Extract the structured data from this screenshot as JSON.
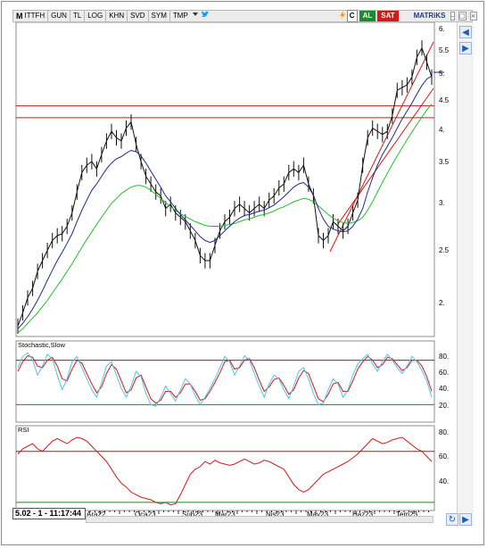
{
  "toolbar": {
    "brand": "M",
    "symbol": "ITTFH",
    "items": [
      "GUN",
      "TL",
      "LOG",
      "KHN",
      "SVD",
      "SYM",
      "TMP"
    ],
    "c_label": "C",
    "buy_label": "AL",
    "sell_label": "SAT",
    "matriks_label": "MATRiKS",
    "colors": {
      "buy": "#1f8b2c",
      "sell": "#d21a1a"
    }
  },
  "panels": {
    "stochastic_title": "Stochastic,Slow",
    "rsi_title": "RSI"
  },
  "price_axis": {
    "ticks": [
      "6.",
      "5.5",
      "5.",
      "4.5",
      "4.",
      "3.5",
      "3.",
      "2.5",
      "2."
    ]
  },
  "stoch_axis": {
    "ticks": [
      "80.",
      "60.",
      "40.",
      "20."
    ]
  },
  "rsi_axis": {
    "ticks": [
      "80.",
      "60.",
      "40."
    ]
  },
  "time_axis": {
    "labels": [
      "Ara22",
      "Oca23",
      "Şub23",
      "Mar23",
      "Nis23",
      "May23",
      "Haz23",
      "Tem23"
    ]
  },
  "status": {
    "readout": "5.02 - 1 - 11:17:44"
  },
  "chart_data": {
    "type": "line",
    "price_levels": [
      4.47,
      4.27
    ],
    "ylim_price": [
      1.85,
      6.1
    ],
    "price": [
      1.9,
      2.0,
      2.12,
      2.2,
      2.35,
      2.45,
      2.55,
      2.65,
      2.7,
      2.72,
      2.8,
      2.95,
      3.2,
      3.45,
      3.55,
      3.6,
      3.5,
      3.7,
      3.9,
      4.05,
      3.95,
      3.9,
      4.1,
      4.2,
      3.85,
      3.6,
      3.4,
      3.3,
      3.2,
      3.15,
      3.0,
      3.05,
      2.95,
      2.9,
      2.85,
      2.75,
      2.65,
      2.5,
      2.45,
      2.45,
      2.6,
      2.75,
      2.85,
      2.9,
      3.0,
      3.05,
      3.0,
      2.95,
      3.0,
      3.05,
      3.0,
      3.1,
      3.15,
      3.25,
      3.3,
      3.45,
      3.5,
      3.45,
      3.55,
      3.3,
      3.15,
      2.7,
      2.65,
      2.7,
      2.85,
      2.8,
      2.75,
      2.8,
      2.95,
      3.1,
      3.55,
      3.95,
      4.1,
      4.05,
      4.0,
      4.05,
      4.3,
      4.75,
      4.8,
      4.85,
      5.0,
      5.4,
      5.6,
      5.3,
      5.0
    ],
    "ma_short": [
      1.88,
      1.92,
      1.97,
      2.03,
      2.1,
      2.18,
      2.27,
      2.36,
      2.45,
      2.53,
      2.62,
      2.72,
      2.85,
      2.98,
      3.1,
      3.22,
      3.3,
      3.4,
      3.5,
      3.58,
      3.64,
      3.67,
      3.72,
      3.76,
      3.74,
      3.68,
      3.58,
      3.47,
      3.36,
      3.26,
      3.15,
      3.08,
      3.0,
      2.93,
      2.87,
      2.81,
      2.75,
      2.69,
      2.65,
      2.63,
      2.65,
      2.7,
      2.75,
      2.8,
      2.85,
      2.89,
      2.92,
      2.93,
      2.95,
      2.97,
      2.98,
      3.01,
      3.04,
      3.09,
      3.14,
      3.2,
      3.26,
      3.3,
      3.32,
      3.26,
      3.16,
      3.0,
      2.88,
      2.8,
      2.77,
      2.75,
      2.74,
      2.75,
      2.8,
      2.88,
      3.0,
      3.2,
      3.38,
      3.55,
      3.7,
      3.82,
      3.95,
      4.1,
      4.25,
      4.38,
      4.52,
      4.68,
      4.84,
      4.96,
      5.02
    ],
    "ma_long": [
      1.85,
      1.88,
      1.92,
      1.96,
      2.0,
      2.05,
      2.1,
      2.16,
      2.22,
      2.28,
      2.35,
      2.42,
      2.5,
      2.58,
      2.66,
      2.74,
      2.82,
      2.9,
      2.98,
      3.06,
      3.12,
      3.18,
      3.22,
      3.26,
      3.28,
      3.28,
      3.26,
      3.22,
      3.17,
      3.12,
      3.07,
      3.02,
      2.98,
      2.94,
      2.91,
      2.88,
      2.85,
      2.83,
      2.81,
      2.8,
      2.8,
      2.8,
      2.81,
      2.82,
      2.83,
      2.85,
      2.87,
      2.88,
      2.9,
      2.92,
      2.93,
      2.95,
      2.97,
      3.0,
      3.02,
      3.05,
      3.08,
      3.1,
      3.12,
      3.11,
      3.08,
      3.03,
      2.98,
      2.93,
      2.89,
      2.86,
      2.84,
      2.83,
      2.84,
      2.86,
      2.9,
      2.98,
      3.08,
      3.2,
      3.32,
      3.44,
      3.56,
      3.68,
      3.8,
      3.92,
      4.04,
      4.16,
      4.28,
      4.4,
      4.5
    ],
    "stoch_k": [
      70,
      85,
      90,
      80,
      60,
      72,
      88,
      82,
      60,
      40,
      55,
      78,
      85,
      70,
      55,
      40,
      30,
      50,
      72,
      78,
      60,
      42,
      30,
      45,
      65,
      58,
      35,
      20,
      18,
      30,
      45,
      35,
      25,
      40,
      55,
      48,
      32,
      20,
      30,
      42,
      55,
      70,
      85,
      78,
      60,
      72,
      86,
      80,
      62,
      45,
      30,
      48,
      60,
      55,
      40,
      28,
      45,
      65,
      70,
      55,
      35,
      20,
      22,
      40,
      55,
      48,
      30,
      40,
      60,
      75,
      82,
      88,
      75,
      65,
      78,
      88,
      80,
      70,
      62,
      72,
      85,
      78,
      66,
      52,
      30
    ],
    "stoch_d": [
      65,
      78,
      86,
      84,
      72,
      70,
      80,
      84,
      72,
      55,
      52,
      68,
      80,
      76,
      62,
      48,
      36,
      44,
      62,
      74,
      68,
      52,
      36,
      40,
      56,
      60,
      44,
      28,
      22,
      26,
      38,
      38,
      30,
      36,
      48,
      48,
      38,
      26,
      28,
      38,
      50,
      63,
      78,
      80,
      68,
      70,
      80,
      82,
      70,
      53,
      38,
      44,
      54,
      56,
      46,
      34,
      40,
      56,
      66,
      62,
      45,
      28,
      24,
      34,
      48,
      50,
      38,
      38,
      52,
      68,
      78,
      85,
      80,
      70,
      74,
      84,
      82,
      74,
      66,
      70,
      80,
      80,
      72,
      58,
      38
    ],
    "rsi": [
      68,
      72,
      74,
      76,
      72,
      70,
      74,
      78,
      80,
      78,
      76,
      79,
      81,
      80,
      78,
      74,
      70,
      66,
      62,
      56,
      50,
      45,
      42,
      38,
      36,
      34,
      33,
      32,
      30,
      29,
      30,
      28,
      29,
      36,
      44,
      52,
      56,
      58,
      62,
      60,
      63,
      61,
      60,
      59,
      60,
      62,
      64,
      62,
      60,
      61,
      63,
      62,
      60,
      58,
      56,
      50,
      44,
      40,
      38,
      40,
      44,
      48,
      52,
      54,
      56,
      58,
      60,
      62,
      65,
      68,
      72,
      76,
      80,
      78,
      76,
      77,
      79,
      80,
      81,
      78,
      75,
      72,
      70,
      66,
      62
    ],
    "stoch_levels": [
      80,
      20
    ],
    "rsi_levels": [
      70,
      30
    ]
  }
}
